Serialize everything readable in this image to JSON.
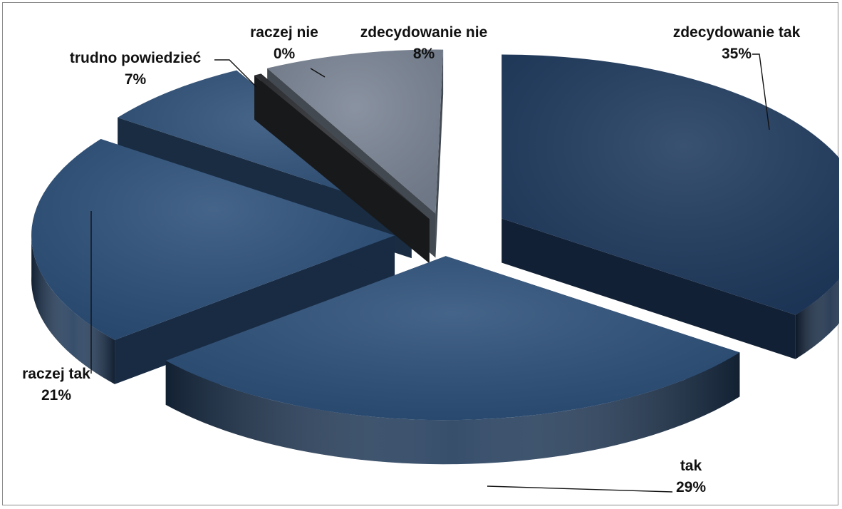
{
  "chart_data": {
    "type": "pie",
    "style": "3d-exploded",
    "categories": [
      "zdecydowanie tak",
      "tak",
      "raczej tak",
      "trudno powiedzieć",
      "raczej nie",
      "zdecydowanie nie"
    ],
    "values": [
      35,
      29,
      21,
      7,
      0,
      8
    ],
    "labels": [
      {
        "name": "zdecydowanie tak",
        "pct": "35%"
      },
      {
        "name": "tak",
        "pct": "29%"
      },
      {
        "name": "raczej tak",
        "pct": "21%"
      },
      {
        "name": "trudno powiedzieć",
        "pct": "7%"
      },
      {
        "name": "raczej nie",
        "pct": "0%"
      },
      {
        "name": "zdecydowanie nie",
        "pct": "8%"
      }
    ],
    "colors": {
      "zdecydowanie tak": "#1f3a5e",
      "tak": "#2c4f79",
      "raczej tak": "#2c4f79",
      "trudno powiedzieć": "#2e5078",
      "raczej nie": "#2b2d31",
      "zdecydowanie nie": "#7a8494"
    },
    "legend": "none"
  }
}
